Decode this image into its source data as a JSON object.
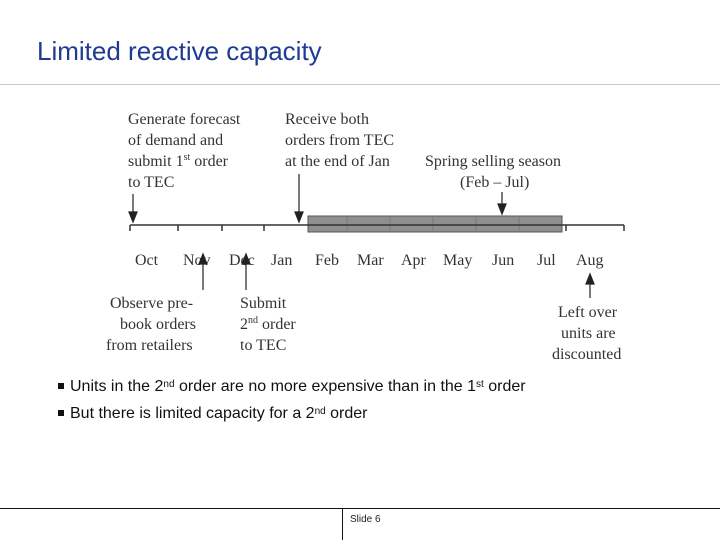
{
  "slide": {
    "title": "Limited reactive capacity",
    "footer": "Slide 6"
  },
  "timeline": {
    "months": [
      "Oct",
      "Nov",
      "Dec",
      "Jan",
      "Feb",
      "Mar",
      "Apr",
      "May",
      "Jun",
      "Jul",
      "Aug"
    ],
    "season_bar_color": "#8f8f8f",
    "annotations": {
      "generate_forecast": {
        "lines": [
          "Generate forecast",
          "of demand and"
        ],
        "submit_prefix": "submit 1",
        "submit_sup": "st",
        "submit_suffix": " order",
        "last_line": "to TEC"
      },
      "receive_orders": {
        "lines": [
          "Receive both",
          "orders from TEC",
          "at the end of Jan"
        ]
      },
      "spring_season": {
        "lines": [
          "Spring selling season",
          "(Feb – Jul)"
        ]
      },
      "observe_prebook": {
        "lines": [
          "Observe pre-",
          "book orders",
          "from retailers"
        ]
      },
      "submit_second": {
        "first_line": "Submit",
        "mid_prefix": "2",
        "mid_sup": "nd",
        "mid_suffix": " order",
        "last_line": "to TEC"
      },
      "left_over": {
        "lines": [
          "Left over",
          "units are",
          "discounted"
        ]
      }
    }
  },
  "bullets": [
    {
      "pre": "Units in the 2",
      "sup1": "nd",
      "mid": " order are no more expensive than in the 1",
      "sup2": "st",
      "post": " order"
    },
    {
      "pre": "But there is limited capacity for a 2",
      "sup1": "nd",
      "mid": " order",
      "sup2": "",
      "post": ""
    }
  ]
}
